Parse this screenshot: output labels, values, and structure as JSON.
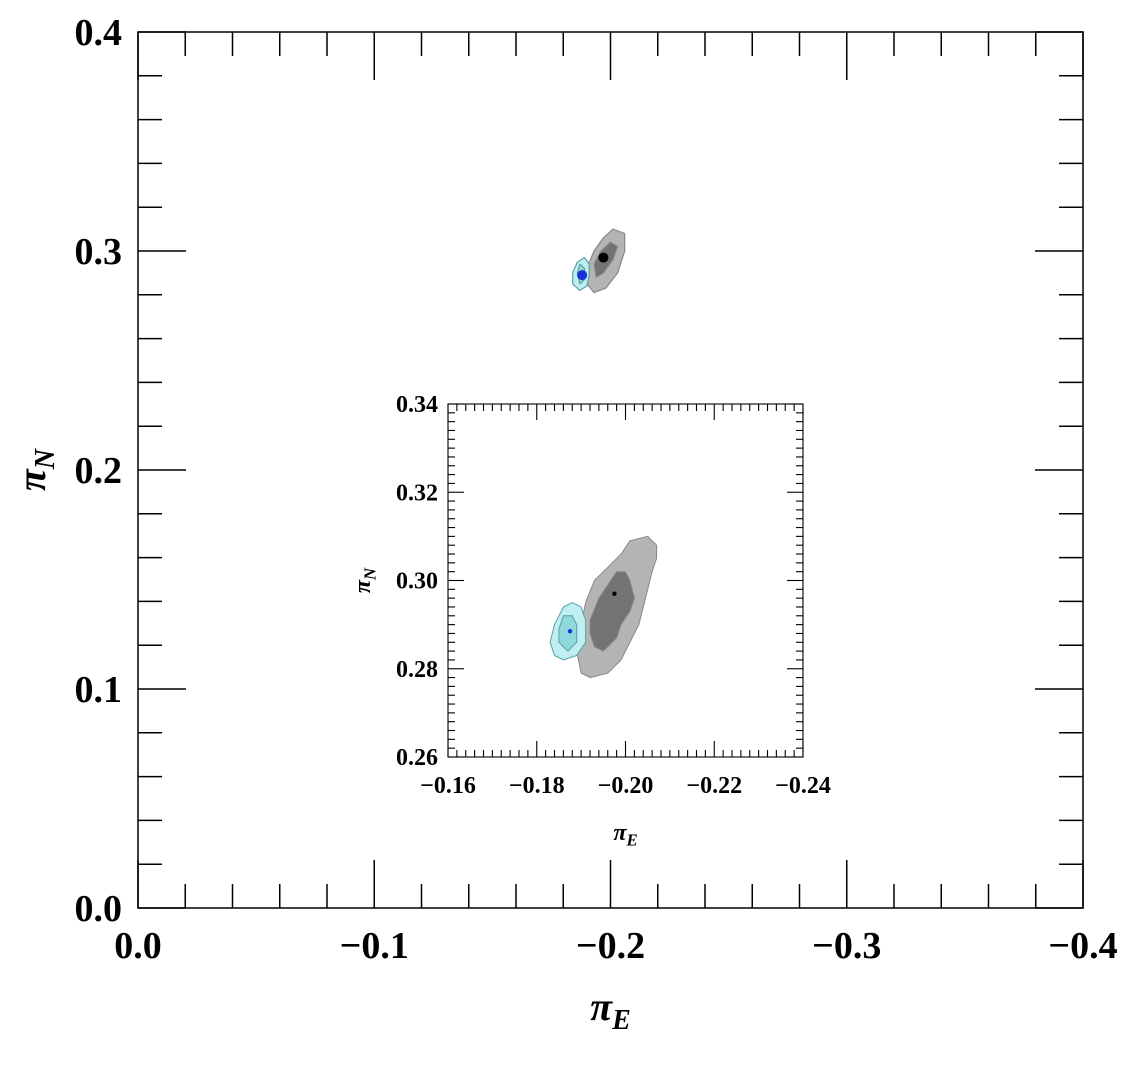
{
  "chart_data": [
    {
      "id": "main",
      "type": "scatter",
      "xlabel": "π",
      "xlabel_sub": "E",
      "ylabel": "π",
      "ylabel_sub": "N",
      "xlim": [
        0.0,
        -0.4
      ],
      "ylim": [
        0.0,
        0.4
      ],
      "xticks": [
        "0.0",
        "−0.1",
        "−0.2",
        "−0.3",
        "−0.4"
      ],
      "xtick_values": [
        0.0,
        -0.1,
        -0.2,
        -0.3,
        -0.4
      ],
      "yticks": [
        "0.0",
        "0.1",
        "0.2",
        "0.3",
        "0.4"
      ],
      "ytick_values": [
        0.0,
        0.1,
        0.2,
        0.3,
        0.4
      ],
      "grid": false,
      "series": [
        {
          "color": "#888888",
          "contours": [
            {
              "level": "outer",
              "fill": "#b4b4b4",
              "points": [
                [
                  -0.193,
                  0.281
                ],
                [
                  -0.198,
                  0.283
                ],
                [
                  -0.203,
                  0.29
                ],
                [
                  -0.206,
                  0.3
                ],
                [
                  -0.206,
                  0.308
                ],
                [
                  -0.201,
                  0.31
                ],
                [
                  -0.197,
                  0.306
                ],
                [
                  -0.193,
                  0.3
                ],
                [
                  -0.19,
                  0.292
                ],
                [
                  -0.19,
                  0.285
                ]
              ]
            },
            {
              "level": "inner",
              "fill": "#737373",
              "points": [
                [
                  -0.194,
                  0.288
                ],
                [
                  -0.197,
                  0.29
                ],
                [
                  -0.201,
                  0.296
                ],
                [
                  -0.203,
                  0.302
                ],
                [
                  -0.2,
                  0.304
                ],
                [
                  -0.196,
                  0.3
                ],
                [
                  -0.193,
                  0.294
                ]
              ]
            }
          ],
          "best_fit": {
            "x": -0.197,
            "y": 0.297,
            "color": "#000000"
          }
        },
        {
          "color": "#5aa0a8",
          "contours": [
            {
              "level": "outer",
              "fill": "#bfeff0",
              "points": [
                [
                  -0.187,
                  0.282
                ],
                [
                  -0.19,
                  0.284
                ],
                [
                  -0.191,
                  0.289
                ],
                [
                  -0.191,
                  0.294
                ],
                [
                  -0.189,
                  0.297
                ],
                [
                  -0.186,
                  0.295
                ],
                [
                  -0.184,
                  0.29
                ],
                [
                  -0.184,
                  0.285
                ]
              ]
            },
            {
              "level": "inner",
              "fill": "#8fd8dc",
              "points": [
                [
                  -0.187,
                  0.285
                ],
                [
                  -0.189,
                  0.287
                ],
                [
                  -0.189,
                  0.292
                ],
                [
                  -0.187,
                  0.294
                ],
                [
                  -0.186,
                  0.29
                ]
              ]
            }
          ],
          "best_fit": {
            "x": -0.188,
            "y": 0.289,
            "color": "#1a2fd6"
          }
        }
      ]
    },
    {
      "id": "inset",
      "type": "scatter",
      "xlabel": "π",
      "xlabel_sub": "E",
      "ylabel": "π",
      "ylabel_sub": "N",
      "xlim": [
        -0.16,
        -0.24
      ],
      "ylim": [
        0.26,
        0.34
      ],
      "xticks": [
        "−0.16",
        "−0.18",
        "−0.20",
        "−0.22",
        "−0.24"
      ],
      "xtick_values": [
        -0.16,
        -0.18,
        -0.2,
        -0.22,
        -0.24
      ],
      "yticks": [
        "0.26",
        "0.28",
        "0.30",
        "0.32",
        "0.34"
      ],
      "ytick_values": [
        0.26,
        0.28,
        0.3,
        0.32,
        0.34
      ],
      "grid": false,
      "series": [
        {
          "color": "#888888",
          "contours": [
            {
              "level": "outer",
              "fill": "#b4b4b4",
              "points": [
                [
                  -0.19,
                  0.279
                ],
                [
                  -0.192,
                  0.278
                ],
                [
                  -0.196,
                  0.279
                ],
                [
                  -0.199,
                  0.282
                ],
                [
                  -0.201,
                  0.286
                ],
                [
                  -0.203,
                  0.29
                ],
                [
                  -0.204,
                  0.294
                ],
                [
                  -0.205,
                  0.298
                ],
                [
                  -0.206,
                  0.302
                ],
                [
                  -0.207,
                  0.305
                ],
                [
                  -0.207,
                  0.308
                ],
                [
                  -0.205,
                  0.31
                ],
                [
                  -0.201,
                  0.309
                ],
                [
                  -0.199,
                  0.306
                ],
                [
                  -0.196,
                  0.303
                ],
                [
                  -0.193,
                  0.3
                ],
                [
                  -0.191,
                  0.295
                ],
                [
                  -0.19,
                  0.29
                ],
                [
                  -0.189,
                  0.284
                ]
              ]
            },
            {
              "level": "inner",
              "fill": "#737373",
              "points": [
                [
                  -0.193,
                  0.285
                ],
                [
                  -0.195,
                  0.284
                ],
                [
                  -0.198,
                  0.287
                ],
                [
                  -0.199,
                  0.29
                ],
                [
                  -0.201,
                  0.293
                ],
                [
                  -0.202,
                  0.296
                ],
                [
                  -0.201,
                  0.3
                ],
                [
                  -0.2,
                  0.302
                ],
                [
                  -0.198,
                  0.302
                ],
                [
                  -0.196,
                  0.299
                ],
                [
                  -0.194,
                  0.296
                ],
                [
                  -0.192,
                  0.291
                ],
                [
                  -0.192,
                  0.288
                ]
              ]
            }
          ],
          "best_fit": {
            "x": -0.1975,
            "y": 0.297,
            "color": "#000000"
          }
        },
        {
          "color": "#5aa0a8",
          "contours": [
            {
              "level": "outer",
              "fill": "#bfeff0",
              "points": [
                [
                  -0.186,
                  0.282
                ],
                [
                  -0.189,
                  0.283
                ],
                [
                  -0.191,
                  0.286
                ],
                [
                  -0.191,
                  0.291
                ],
                [
                  -0.19,
                  0.294
                ],
                [
                  -0.188,
                  0.295
                ],
                [
                  -0.186,
                  0.294
                ],
                [
                  -0.184,
                  0.29
                ],
                [
                  -0.183,
                  0.286
                ],
                [
                  -0.184,
                  0.283
                ]
              ]
            },
            {
              "level": "inner",
              "fill": "#8fd8dc",
              "points": [
                [
                  -0.187,
                  0.284
                ],
                [
                  -0.189,
                  0.286
                ],
                [
                  -0.189,
                  0.29
                ],
                [
                  -0.188,
                  0.292
                ],
                [
                  -0.186,
                  0.292
                ],
                [
                  -0.185,
                  0.289
                ],
                [
                  -0.185,
                  0.286
                ]
              ]
            }
          ],
          "best_fit": {
            "x": -0.1875,
            "y": 0.2885,
            "color": "#1a2fd6"
          }
        }
      ]
    }
  ]
}
